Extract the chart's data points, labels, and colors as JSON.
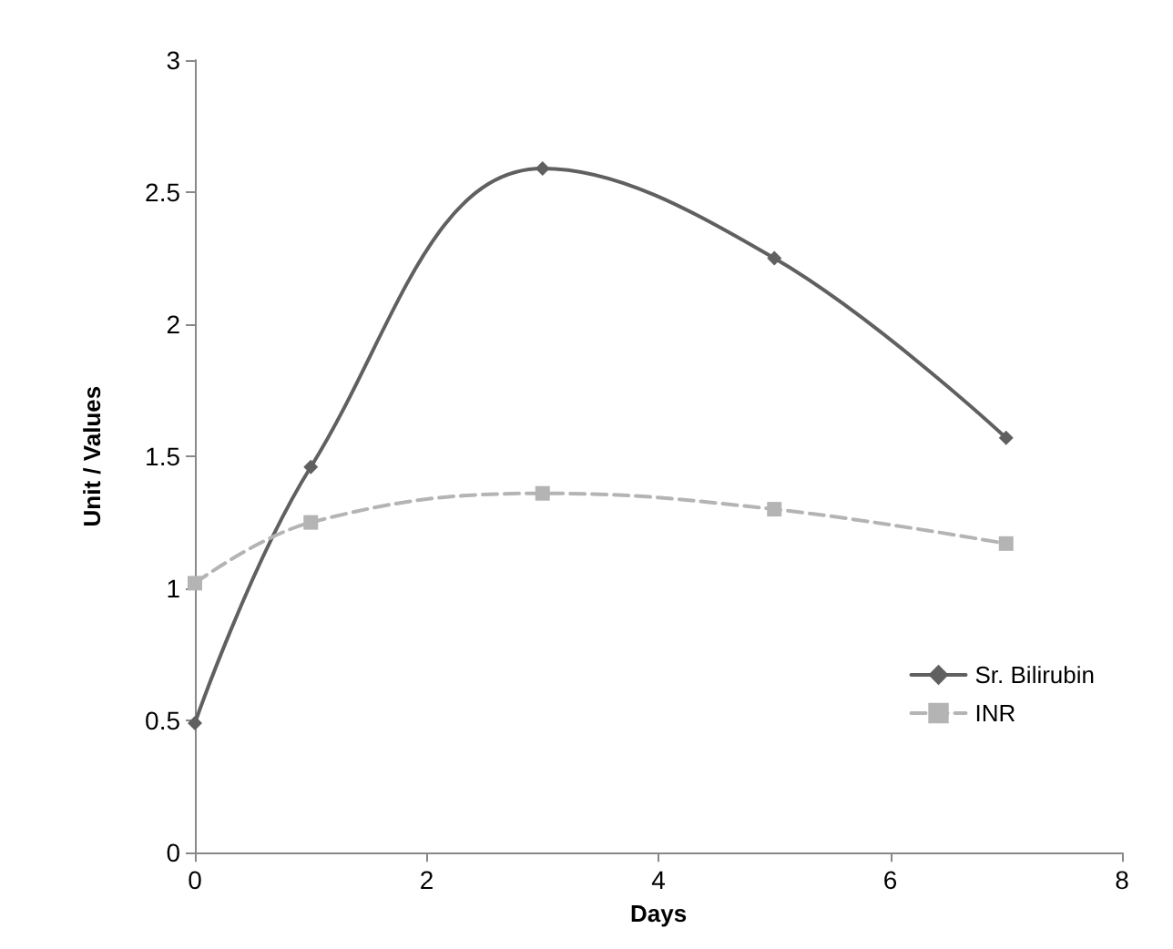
{
  "chart_data": {
    "type": "line",
    "xlabel": "Days",
    "ylabel": "Unit / Values",
    "xlim": [
      0,
      8
    ],
    "xticks": [
      0,
      2,
      4,
      6,
      8
    ],
    "ylim": [
      0,
      3
    ],
    "yticks": [
      0,
      0.5,
      1,
      1.5,
      2,
      2.5,
      3
    ],
    "grid": false,
    "legend": "bottom right",
    "x": [
      0,
      1,
      3,
      5,
      7
    ],
    "series": [
      {
        "name": "Sr. Bilirubin",
        "color": "#606060",
        "values": [
          0.49,
          1.46,
          2.59,
          2.25,
          1.57
        ],
        "marker": "diamond",
        "line_style": "solid"
      },
      {
        "name": "INR",
        "color": "#b4b4b4",
        "values": [
          1.02,
          1.25,
          1.36,
          1.3,
          1.17
        ],
        "marker": "square",
        "line_style": "dashed"
      }
    ]
  }
}
